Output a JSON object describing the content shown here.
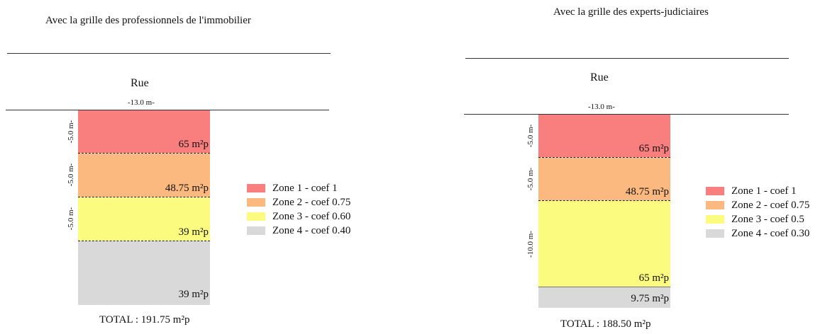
{
  "colors": {
    "zone1": "#f97f7f",
    "zone2": "#fbb97f",
    "zone3": "#fbfb7f",
    "zone4": "#d9d9d9"
  },
  "left": {
    "title": "Avec la grille des professionnels de l'immobilier",
    "street": "Rue",
    "width_label": "-13.0 m-",
    "zones": [
      {
        "depth_label": "-5.0 m-",
        "value": "65 m²p",
        "color": "zone1"
      },
      {
        "depth_label": "-5.0 m-",
        "value": "48.75 m²p",
        "color": "zone2"
      },
      {
        "depth_label": "-5.0 m-",
        "value": "39 m²p",
        "color": "zone3"
      },
      {
        "depth_label": "",
        "value": "39 m²p",
        "color": "zone4"
      }
    ],
    "legend": [
      {
        "label": "Zone 1 - coef 1",
        "color": "zone1"
      },
      {
        "label": "Zone 2 - coef 0.75",
        "color": "zone2"
      },
      {
        "label": "Zone 3 - coef 0.60",
        "color": "zone3"
      },
      {
        "label": "Zone 4 - coef 0.40",
        "color": "zone4"
      }
    ],
    "total": "TOTAL : 191.75 m²p"
  },
  "right": {
    "title": "Avec la grille des experts-judiciaires",
    "street": "Rue",
    "width_label": "-13.0 m-",
    "zones": [
      {
        "depth_label": "-5.0 m-",
        "value": "65 m²p",
        "color": "zone1"
      },
      {
        "depth_label": "-5.0 m-",
        "value": "48.75 m²p",
        "color": "zone2"
      },
      {
        "depth_label": "-10.0 m-",
        "value": "65 m²p",
        "color": "zone3"
      },
      {
        "depth_label": "",
        "value": "9.75 m²p",
        "color": "zone4"
      }
    ],
    "legend": [
      {
        "label": "Zone 1 - coef 1",
        "color": "zone1"
      },
      {
        "label": "Zone 2 - coef 0.75",
        "color": "zone2"
      },
      {
        "label": "Zone 3 - coef 0.5",
        "color": "zone3"
      },
      {
        "label": "Zone 4 - coef 0.30",
        "color": "zone4"
      }
    ],
    "total": "TOTAL : 188.50 m²p"
  }
}
